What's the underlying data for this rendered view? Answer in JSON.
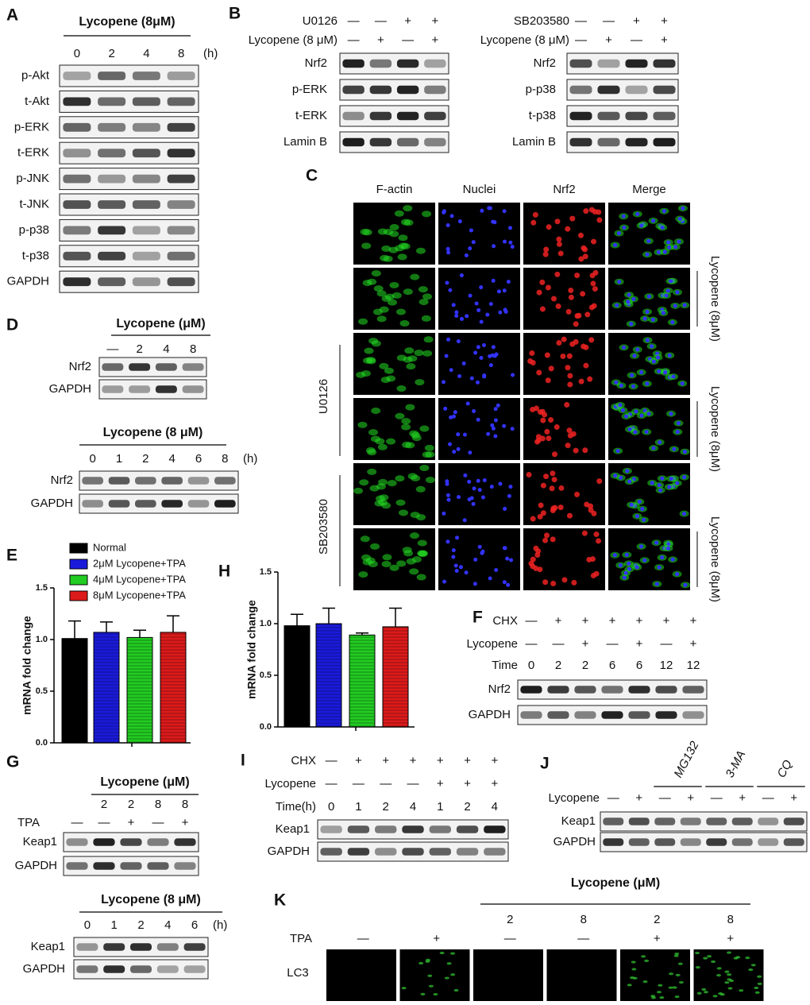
{
  "panels": {
    "A": {
      "letter": "A",
      "blots": [
        {
          "header": "Lycopene (8μM)",
          "unit": "(h)",
          "conditions": [
            {
              "cells": [
                "0",
                "2",
                "4",
                "8"
              ]
            }
          ],
          "rows": [
            "p-Akt",
            "t-Akt",
            "p-ERK",
            "t-ERK",
            "p-JNK",
            "t-JNK",
            "p-p38",
            "t-p38",
            "GAPDH"
          ]
        }
      ]
    },
    "B": {
      "letter": "B",
      "blots": [
        {
          "conditions": [
            {
              "label": "U0126",
              "cells": [
                "—",
                "—",
                "+",
                "+"
              ]
            },
            {
              "label": "Lycopene (8 μM)",
              "cells": [
                "—",
                "+",
                "—",
                "+"
              ]
            }
          ],
          "rows": [
            "Nrf2",
            "p-ERK",
            "t-ERK",
            "Lamin B"
          ]
        },
        {
          "conditions": [
            {
              "label": "SB203580",
              "cells": [
                "—",
                "—",
                "+",
                "+"
              ]
            },
            {
              "label": "Lycopene (8 μM)",
              "cells": [
                "—",
                "+",
                "—",
                "+"
              ]
            }
          ],
          "rows": [
            "Nrf2",
            "p-p38",
            "t-p38",
            "Lamin B"
          ]
        }
      ]
    },
    "C": {
      "letter": "C",
      "columns": [
        "F-actin",
        "Nuclei",
        "Nrf2",
        "Merge"
      ],
      "right_labels": [
        "Lycopene (8μM)",
        "Lycopene (8μM)",
        "Lycopene (8μM)"
      ],
      "left_labels": [
        "U0126",
        "SB203580"
      ]
    },
    "D": {
      "letter": "D",
      "blots": [
        {
          "header": "Lycopene (μM)",
          "conditions": [
            {
              "cells": [
                "—",
                "2",
                "4",
                "8"
              ]
            }
          ],
          "rows": [
            "Nrf2",
            "GAPDH"
          ]
        },
        {
          "header": "Lycopene (8 μM)",
          "unit": "(h)",
          "conditions": [
            {
              "cells": [
                "0",
                "1",
                "2",
                "4",
                "6",
                "8"
              ]
            }
          ],
          "rows": [
            "Nrf2",
            "GAPDH"
          ]
        }
      ]
    },
    "E": {
      "letter": "E"
    },
    "F": {
      "letter": "F",
      "blots": [
        {
          "conditions": [
            {
              "label": "CHX",
              "cells": [
                "—",
                "+",
                "+",
                "+",
                "+",
                "+",
                "+"
              ]
            },
            {
              "label": "Lycopene",
              "cells": [
                "—",
                "—",
                "+",
                "—",
                "+",
                "—",
                "+"
              ]
            },
            {
              "label": "Time",
              "cells": [
                "0",
                "2",
                "2",
                "6",
                "6",
                "12",
                "12"
              ]
            }
          ],
          "rows": [
            "Nrf2",
            "GAPDH"
          ]
        }
      ]
    },
    "G": {
      "letter": "G",
      "blots": [
        {
          "header": "Lycopene (μM)",
          "conditions": [
            {
              "cells": [
                null,
                "2",
                "2",
                "8",
                "8"
              ]
            },
            {
              "label": "TPA",
              "cells": [
                "—",
                "—",
                "+",
                "—",
                "+"
              ]
            }
          ],
          "rows": [
            "Keap1",
            "GAPDH"
          ]
        },
        {
          "header": "Lycopene (8 μM)",
          "unit": "(h)",
          "conditions": [
            {
              "cells": [
                "0",
                "1",
                "2",
                "4",
                "6"
              ]
            }
          ],
          "rows": [
            "Keap1",
            "GAPDH"
          ]
        }
      ]
    },
    "H": {
      "letter": "H"
    },
    "I": {
      "letter": "I",
      "blots": [
        {
          "conditions": [
            {
              "label": "CHX",
              "cells": [
                "—",
                "+",
                "+",
                "+",
                "+",
                "+",
                "+"
              ]
            },
            {
              "label": "Lycopene",
              "cells": [
                "—",
                "—",
                "—",
                "—",
                "+",
                "+",
                "+"
              ]
            },
            {
              "label": "Time(h)",
              "cells": [
                "0",
                "1",
                "2",
                "4",
                "1",
                "2",
                "4"
              ]
            }
          ],
          "rows": [
            "Keap1",
            "GAPDH"
          ]
        }
      ]
    },
    "J": {
      "letter": "J",
      "groups": [
        "MG132",
        "3-MA",
        "CQ"
      ],
      "blots": [
        {
          "conditions": [
            {
              "label": "Lycopene",
              "cells": [
                "—",
                "+",
                "—",
                "+",
                "—",
                "+",
                "—",
                "+"
              ]
            }
          ],
          "rows": [
            "Keap1",
            "GAPDH"
          ]
        }
      ]
    },
    "K": {
      "letter": "K",
      "image_label": "LC3",
      "blots": [
        {
          "header": "Lycopene (μM)",
          "conditions": [
            {
              "cells": [
                null,
                null,
                "2",
                "8",
                "2",
                "8"
              ]
            },
            {
              "label": "TPA",
              "cells": [
                "—",
                "+",
                "—",
                "—",
                "+",
                "+"
              ]
            }
          ]
        }
      ]
    }
  },
  "chart_data": [
    {
      "type": "bar",
      "ylabel": "mRNA fold change",
      "categories": [
        null
      ],
      "ylim": [
        0,
        1.5
      ],
      "yticks": [
        {
          "value": 0,
          "label": "0.0"
        },
        {
          "value": 0.5,
          "label": "0.5"
        },
        {
          "value": 1,
          "label": "1.0"
        },
        {
          "value": 1.5,
          "label": "1.5"
        }
      ],
      "series": [
        {
          "name": "Normal",
          "color": "#000000",
          "values": [
            1.01
          ],
          "errors": [
            0.17
          ]
        },
        {
          "name": "2μM Lycopene+TPA",
          "color": "#1a1adb",
          "values": [
            1.07
          ],
          "errors": [
            0.1
          ]
        },
        {
          "name": "4μM Lycopene+TPA",
          "color": "#22cc22",
          "values": [
            1.02
          ],
          "errors": [
            0.07
          ]
        },
        {
          "name": "8μM Lycopene+TPA",
          "color": "#dd1a1a",
          "values": [
            1.07
          ],
          "errors": [
            0.16
          ]
        }
      ]
    },
    {
      "type": "bar",
      "ylabel": "mRNA fold change",
      "categories": [
        null
      ],
      "ylim": [
        0,
        1.5
      ],
      "yticks": [
        {
          "value": 0,
          "label": "0.0"
        },
        {
          "value": 0.5,
          "label": "0.5"
        },
        {
          "value": 1,
          "label": "1.0"
        },
        {
          "value": 1.5,
          "label": "1.5"
        }
      ],
      "series": [
        {
          "color": "#000000",
          "values": [
            0.98
          ],
          "errors": [
            0.11
          ]
        },
        {
          "color": "#1a1adb",
          "values": [
            1.0
          ],
          "errors": [
            0.15
          ]
        },
        {
          "color": "#22cc22",
          "values": [
            0.89
          ],
          "errors": [
            0.02
          ]
        },
        {
          "color": "#dd1a1a",
          "values": [
            0.97
          ],
          "errors": [
            0.18
          ]
        }
      ]
    }
  ]
}
